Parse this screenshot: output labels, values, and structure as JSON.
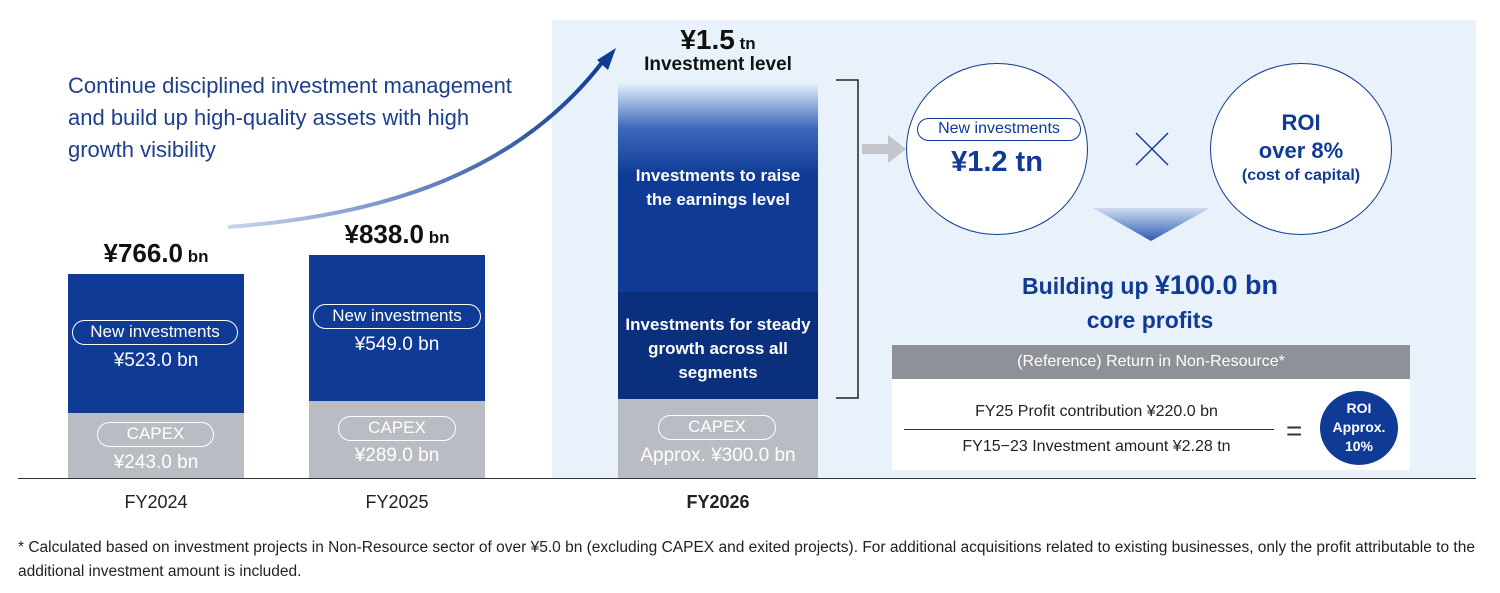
{
  "headline": "Continue disciplined investment management and build up high-quality assets with high growth visibility",
  "chart_data": {
    "type": "bar",
    "categories": [
      "FY2024",
      "FY2025",
      "FY2026"
    ],
    "series": [
      {
        "name": "New investments",
        "values": [
          523.0,
          549.0,
          null
        ]
      },
      {
        "name": "CAPEX",
        "values": [
          243.0,
          289.0,
          300.0
        ]
      }
    ],
    "totals": [
      766.0,
      838.0,
      1500.0
    ],
    "ylim": [
      0,
      1550
    ]
  },
  "bars": [
    {
      "year": "FY2024",
      "total_num": "¥766.0",
      "total_unit": " bn",
      "new_label": "New investments",
      "new_value": "¥523.0 bn",
      "capex_label": "CAPEX",
      "capex_value": "¥243.0 bn"
    },
    {
      "year": "FY2025",
      "total_num": "¥838.0",
      "total_unit": " bn",
      "new_label": "New investments",
      "new_value": "¥549.0 bn",
      "capex_label": "CAPEX",
      "capex_value": "¥289.0 bn"
    }
  ],
  "fy2026": {
    "year": "FY2026",
    "total_num": "¥1.5",
    "total_unit": " tn",
    "level_label": "Investment level",
    "upper_text": "Investments to raise the earnings level",
    "middle_text": "Investments for steady growth across all segments",
    "capex_label": "CAPEX",
    "capex_value": "Approx. ¥300.0 bn"
  },
  "formula": {
    "new_inv_label": "New investments",
    "new_inv_value": "¥1.2 tn",
    "roi_title": "ROI",
    "roi_value": "over 8%",
    "roi_note": "(cost of capital)",
    "build_prefix": "Building up ",
    "build_amount": "¥100.0 bn",
    "build_suffix": "core profits"
  },
  "reference": {
    "header": "(Reference) Return in Non-Resource*",
    "numerator": "FY25 Profit contribution ¥220.0 bn",
    "denominator": "FY15−23 Investment amount ¥2.28 tn",
    "equals": "=",
    "roi_l1": "ROI",
    "roi_l2": "Approx.",
    "roi_l3": "10%"
  },
  "footnote": "* Calculated based on investment projects in Non-Resource sector of over ¥5.0 bn (excluding CAPEX and exited projects). For additional acquisitions related to existing businesses, only the profit attributable to the additional investment amount is included.",
  "colors": {
    "navy": "#0f3a95",
    "capex_gray": "#b9bdc3",
    "panel": "#e9f2fa",
    "headline_blue": "#1d3f8f"
  }
}
